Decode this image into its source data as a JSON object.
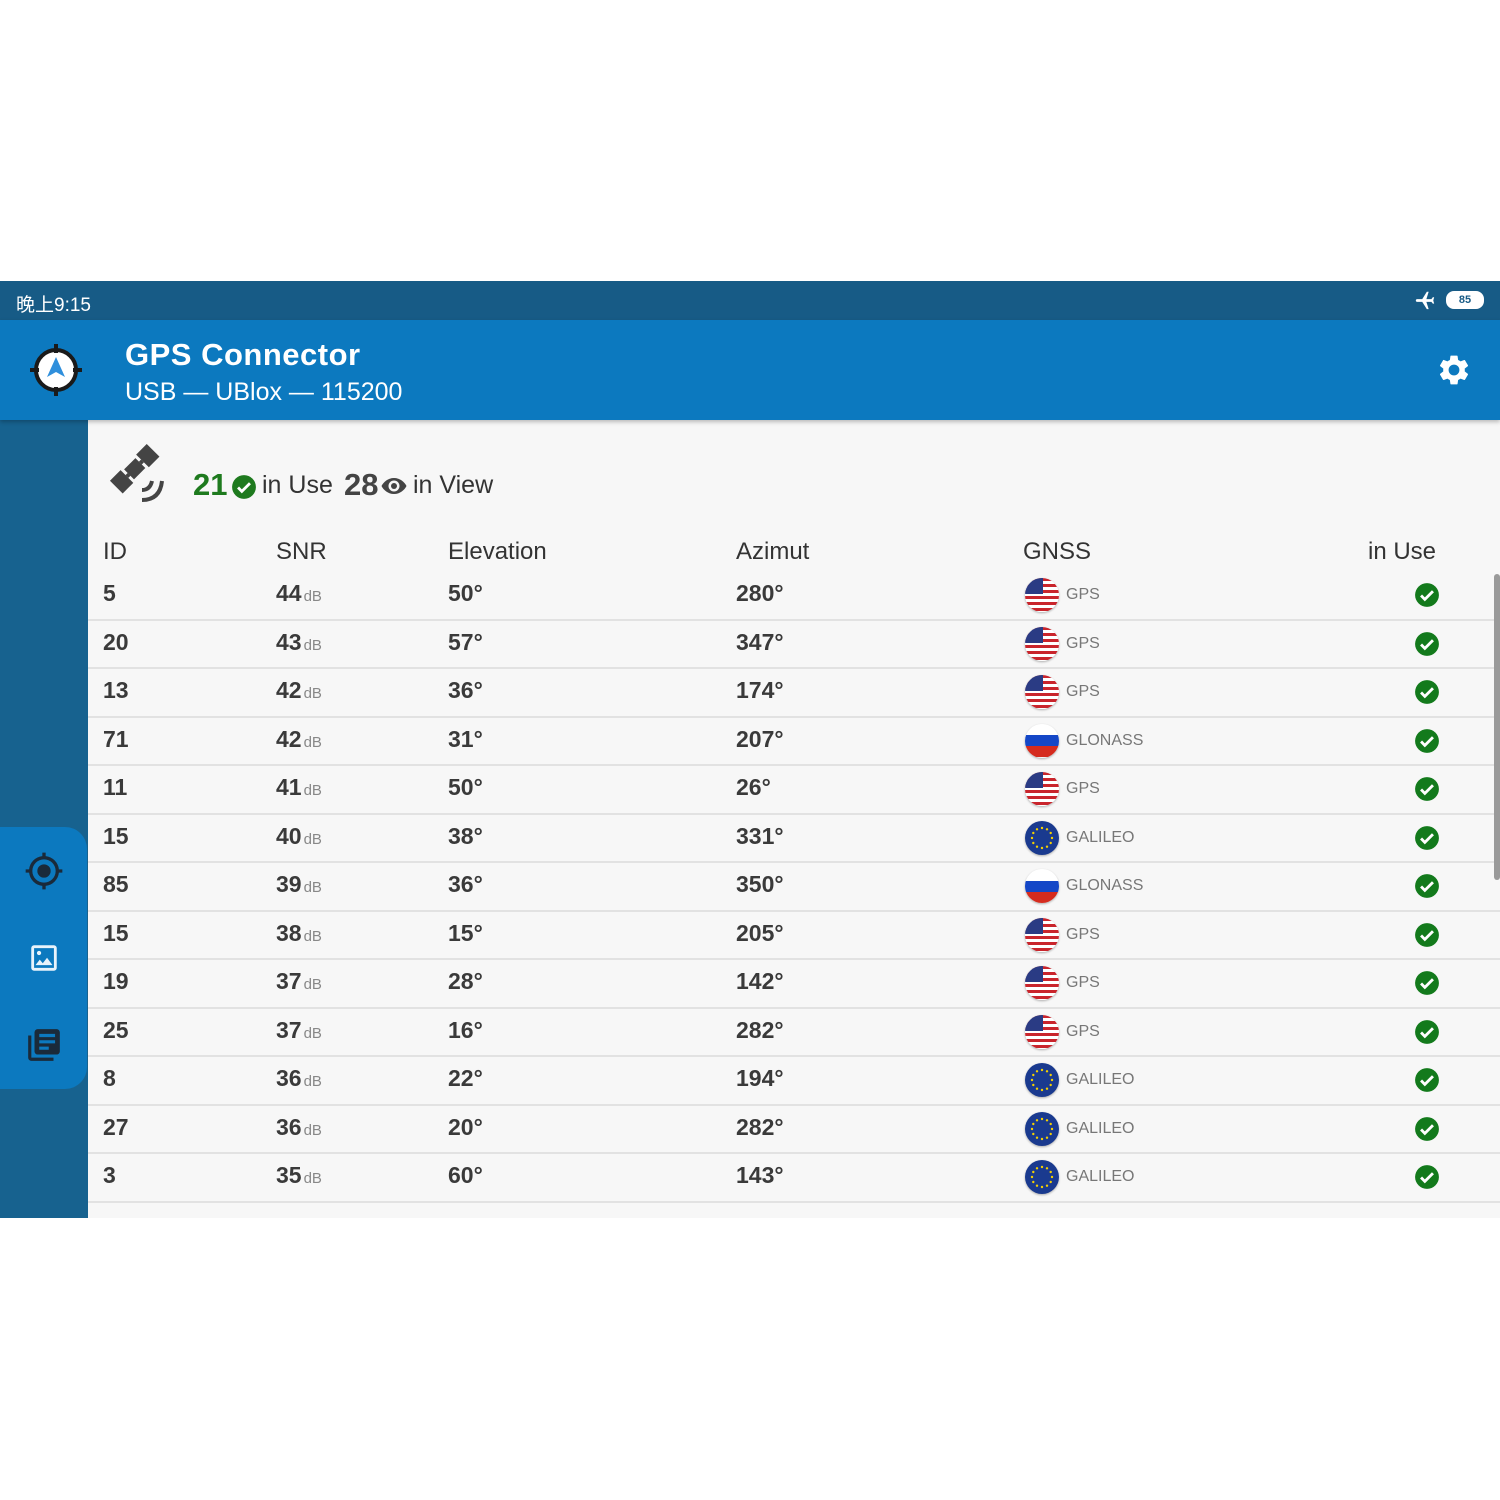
{
  "status_bar": {
    "time": "晚上9:15",
    "battery": "85"
  },
  "app": {
    "title": "GPS Connector",
    "subtitle": "USB — UBlox — 115200"
  },
  "summary": {
    "in_use_count": "21",
    "in_use_label": "in Use",
    "in_view_count": "28",
    "in_view_label": "in View"
  },
  "table": {
    "headers": {
      "id": "ID",
      "snr": "SNR",
      "elevation": "Elevation",
      "azimut": "Azimut",
      "gnss": "GNSS",
      "in_use": "in Use"
    },
    "snr_unit": "dB",
    "rows": [
      {
        "id": "5",
        "snr": "44",
        "elevation": "50°",
        "azimut": "280°",
        "gnss": "GPS",
        "flag": "us-flag-icon",
        "in_use": true
      },
      {
        "id": "20",
        "snr": "43",
        "elevation": "57°",
        "azimut": "347°",
        "gnss": "GPS",
        "flag": "us-flag-icon",
        "in_use": true
      },
      {
        "id": "13",
        "snr": "42",
        "elevation": "36°",
        "azimut": "174°",
        "gnss": "GPS",
        "flag": "us-flag-icon",
        "in_use": true
      },
      {
        "id": "71",
        "snr": "42",
        "elevation": "31°",
        "azimut": "207°",
        "gnss": "GLONASS",
        "flag": "russia-flag-icon",
        "in_use": true
      },
      {
        "id": "11",
        "snr": "41",
        "elevation": "50°",
        "azimut": "26°",
        "gnss": "GPS",
        "flag": "us-flag-icon",
        "in_use": true
      },
      {
        "id": "15",
        "snr": "40",
        "elevation": "38°",
        "azimut": "331°",
        "gnss": "GALILEO",
        "flag": "eu-flag-icon",
        "in_use": true
      },
      {
        "id": "85",
        "snr": "39",
        "elevation": "36°",
        "azimut": "350°",
        "gnss": "GLONASS",
        "flag": "russia-flag-icon",
        "in_use": true
      },
      {
        "id": "15",
        "snr": "38",
        "elevation": "15°",
        "azimut": "205°",
        "gnss": "GPS",
        "flag": "us-flag-icon",
        "in_use": true
      },
      {
        "id": "19",
        "snr": "37",
        "elevation": "28°",
        "azimut": "142°",
        "gnss": "GPS",
        "flag": "us-flag-icon",
        "in_use": true
      },
      {
        "id": "25",
        "snr": "37",
        "elevation": "16°",
        "azimut": "282°",
        "gnss": "GPS",
        "flag": "us-flag-icon",
        "in_use": true
      },
      {
        "id": "8",
        "snr": "36",
        "elevation": "22°",
        "azimut": "194°",
        "gnss": "GALILEO",
        "flag": "eu-flag-icon",
        "in_use": true
      },
      {
        "id": "27",
        "snr": "36",
        "elevation": "20°",
        "azimut": "282°",
        "gnss": "GALILEO",
        "flag": "eu-flag-icon",
        "in_use": true
      },
      {
        "id": "3",
        "snr": "35",
        "elevation": "60°",
        "azimut": "143°",
        "gnss": "GALILEO",
        "flag": "eu-flag-icon",
        "in_use": true
      }
    ]
  },
  "nav": {
    "items": [
      "position-icon",
      "image-icon",
      "log-icon"
    ]
  },
  "colors": {
    "appbar": "#0c79bf",
    "status_bar": "#175b86",
    "in_use_green": "#1e7a1e",
    "rail": "#17628f"
  }
}
